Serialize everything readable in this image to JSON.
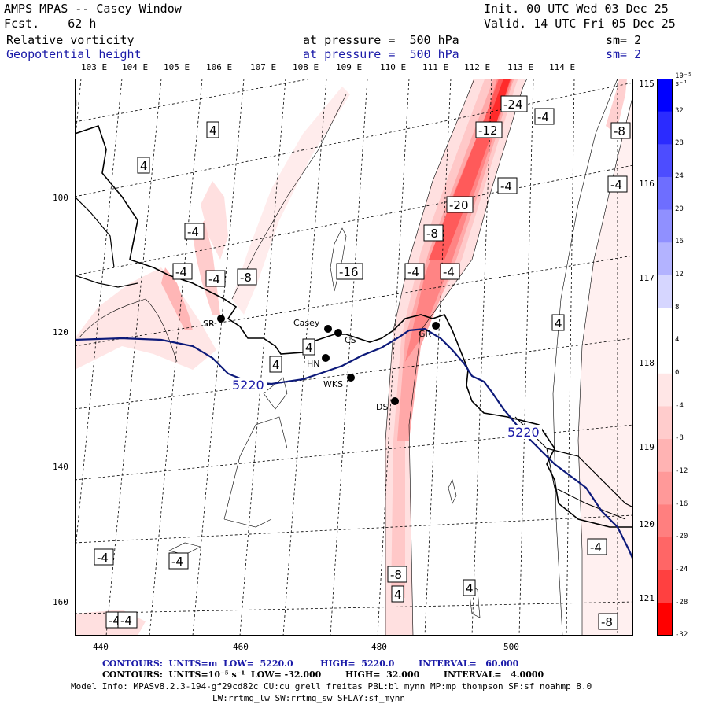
{
  "header": {
    "title": "AMPS MPAS -- Casey Window",
    "forecast": "Fcst.    62 h",
    "init": "Init. 00 UTC Wed 03 Dec 25",
    "valid": "Valid. 14 UTC Fri 05 Dec 25",
    "field1": {
      "name": "Relative vorticity",
      "level": "at pressure =  500 hPa",
      "smooth": "sm= 2"
    },
    "field2": {
      "name": "Geopotential height",
      "level": "at pressure =  500 hPa",
      "smooth": "sm= 2"
    }
  },
  "longitude_labels": [
    "103 E",
    "104 E",
    "105 E",
    "106 E",
    "107 E",
    "108 E",
    "109 E",
    "110 E",
    "111 E",
    "112 E",
    "113 E",
    "114 E"
  ],
  "right_labels": [
    "115 E",
    "116 E",
    "117 E",
    "118 E",
    "119 E",
    "120 E",
    "121 E"
  ],
  "x_axis_ticks": [
    "440",
    "460",
    "480",
    "500"
  ],
  "y_axis_ticks": [
    "100",
    "120",
    "140",
    "160"
  ],
  "stations": [
    {
      "name": "SR"
    },
    {
      "name": "Casey"
    },
    {
      "name": "CS"
    },
    {
      "name": "HN"
    },
    {
      "name": "WKS"
    },
    {
      "name": "DS"
    },
    {
      "name": "GR"
    }
  ],
  "contour_labels": {
    "height": [
      "5220",
      "5220"
    ],
    "vorticity": [
      "-24",
      "-4",
      "-12",
      "-8",
      "4",
      "4",
      "-20",
      "-4",
      "-4",
      "-8",
      "-4",
      "-4",
      "-4",
      "-8",
      "-4",
      "-4",
      "-16",
      "4",
      "4",
      "4",
      "-4",
      "-4",
      "-4",
      "4",
      "-8",
      "4",
      "-8",
      "-4",
      "-4"
    ]
  },
  "colorbar": {
    "units": "10⁻⁵ s⁻¹",
    "labels": [
      "32",
      "28",
      "24",
      "20",
      "16",
      "12",
      "8",
      "4",
      "0",
      "-4",
      "-8",
      "-12",
      "-16",
      "-20",
      "-24",
      "-28",
      "-32"
    ],
    "colors": [
      "#0000ff",
      "#2b2bff",
      "#4d4dff",
      "#6e6eff",
      "#9090ff",
      "#b3b3ff",
      "#d6d6ff",
      "#ffffff",
      "#ffffff",
      "#ffe6e6",
      "#ffcccc",
      "#ffb3b3",
      "#ff9999",
      "#ff7f7f",
      "#ff6666",
      "#ff4040",
      "#ff0000"
    ]
  },
  "footer": {
    "line1": "CONTOURS:  UNITS=m  LOW=  5220.0         HIGH=  5220.0        INTERVAL=   60.000",
    "line2": "CONTOURS:  UNITS=10⁻⁵ s⁻¹  LOW= -32.000        HIGH=  32.000        INTERVAL=   4.0000",
    "line3": "Model Info: MPASv8.2.3-194-gf29cd82c CU:cu_grell_freitas PBL:bl_mynn MP:mp_thompson SF:sf_noahmp 8.0",
    "line4": "LW:rrtmg_lw SW:rrtmg_sw SFLAY:sf_mynn"
  },
  "colors": {
    "height_line": "#0d1a7a",
    "text_blue": "#1a1aa8",
    "vort_max": "#ff2a2a"
  }
}
